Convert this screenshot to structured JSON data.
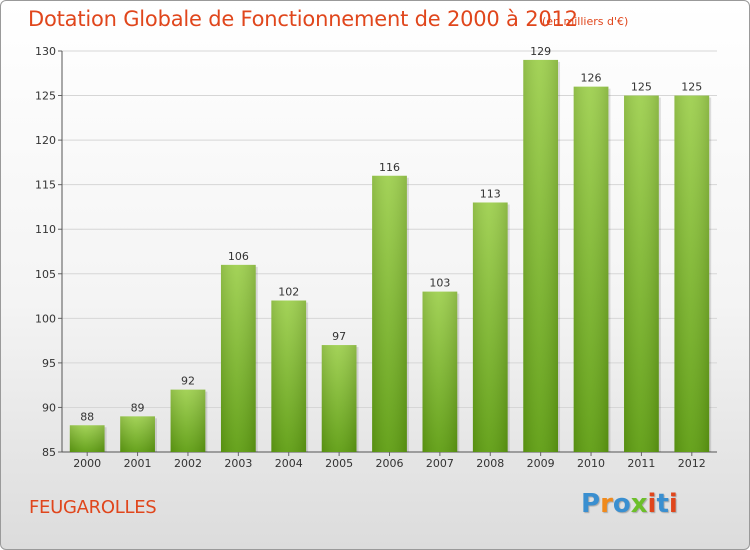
{
  "header": {
    "title": "Dotation Globale de Fonctionnement de 2000 à 2012",
    "subtitle": "(en milliers d'€)"
  },
  "footer": {
    "commune": "FEUGAROLLES",
    "logo": [
      "P",
      "r",
      "o",
      "x",
      "i",
      "t",
      "i"
    ],
    "logo_colors": [
      "#3a8fd0",
      "#f08a1c",
      "#3a8fd0",
      "#6cbf2a",
      "#e0461c",
      "#3a8fd0",
      "#e0461c"
    ]
  },
  "chart_data": {
    "type": "bar",
    "title": "Dotation Globale de Fonctionnement de 2000 à 2012",
    "subtitle": "(en milliers d'€)",
    "categories": [
      "2000",
      "2001",
      "2002",
      "2003",
      "2004",
      "2005",
      "2006",
      "2007",
      "2008",
      "2009",
      "2010",
      "2011",
      "2012"
    ],
    "values": [
      88,
      89,
      92,
      106,
      102,
      97,
      116,
      103,
      113,
      129,
      126,
      125,
      125
    ],
    "ylim": [
      85,
      130
    ],
    "yticks": [
      85,
      90,
      95,
      100,
      105,
      110,
      115,
      120,
      125,
      130
    ],
    "grid": true,
    "bar_color_top": "#9fd050",
    "bar_color_bottom": "#5f9e12"
  }
}
